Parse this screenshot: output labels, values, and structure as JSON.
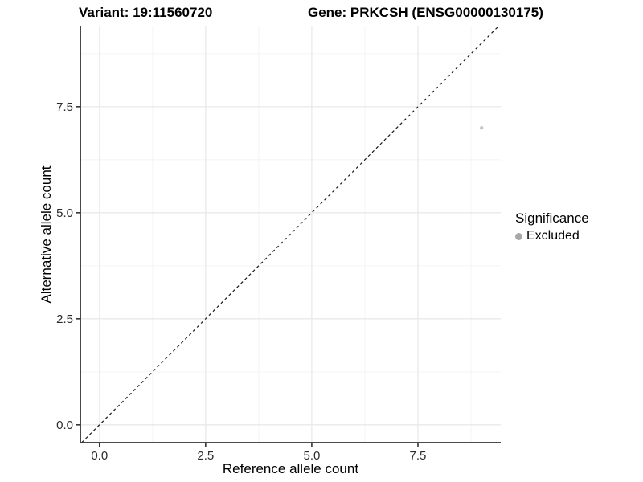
{
  "titles": {
    "left": "Variant: 19:11560720",
    "right": "Gene: PRKCSH (ENSG00000130175)"
  },
  "chart_data": {
    "type": "scatter",
    "xlabel": "Reference allele count",
    "ylabel": "Alternative allele count",
    "xlim": [
      -0.45,
      9.45
    ],
    "ylim": [
      -0.42,
      9.41
    ],
    "x_ticks": {
      "values": [
        0,
        2.5,
        5,
        7.5
      ],
      "labels": [
        "0.0",
        "2.5",
        "5.0",
        "7.5"
      ]
    },
    "y_ticks": {
      "values": [
        0,
        2.5,
        5,
        7.5
      ],
      "labels": [
        "0.0",
        "2.5",
        "5.0",
        "7.5"
      ]
    },
    "x_minor_gridlines": [
      1.25,
      3.75,
      6.25,
      8.75
    ],
    "y_minor_gridlines": [
      1.25,
      3.75,
      6.25,
      8.75
    ],
    "grid": "major+minor, light gray on white panel",
    "reference_line": {
      "kind": "identity y = x",
      "style": "dashed",
      "color": "#1a1a1a"
    },
    "series": [
      {
        "name": "Excluded",
        "color": "#c6c6c6",
        "points": [
          {
            "x": 9,
            "y": 7
          }
        ]
      }
    ],
    "legend": {
      "title": "Significance",
      "position": "right",
      "entries": [
        {
          "label": "Excluded",
          "marker": "circle",
          "color": "#a8a8a8"
        }
      ]
    },
    "colors": {
      "axis_line": "#333333",
      "tick_mark": "#333333",
      "tick_text": "#2b2b2b",
      "grid_major": "#e9e9e9",
      "grid_minor": "#f4f4f4",
      "panel_background": "#ffffff"
    }
  }
}
